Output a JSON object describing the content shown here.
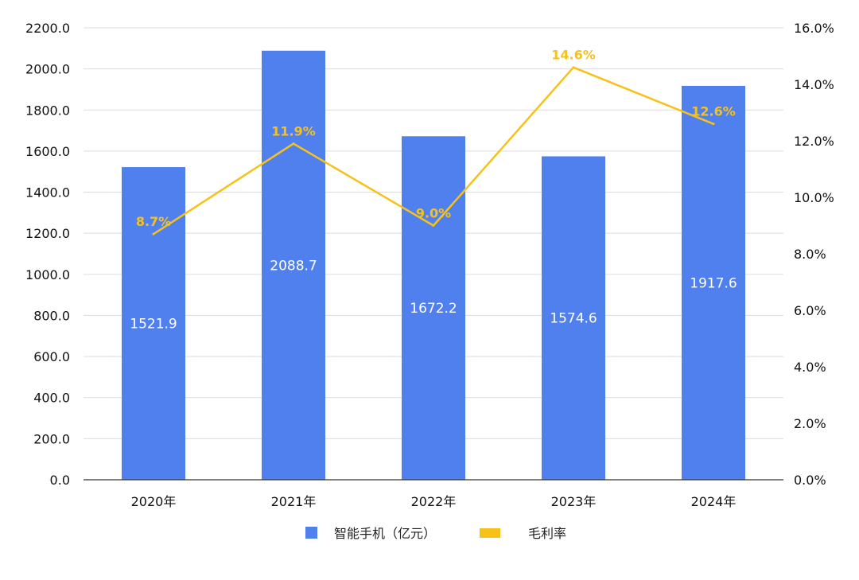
{
  "colors": {
    "bar": "#5080EE",
    "line": "#F6C21A",
    "grid": "#DDDDDD",
    "axis": "#333333"
  },
  "chart_data": {
    "type": "bar",
    "categories": [
      "2020年",
      "2021年",
      "2022年",
      "2023年",
      "2024年"
    ],
    "series": [
      {
        "name": "智能手机（亿元）",
        "type": "bar",
        "axis": "left",
        "values": [
          1521.9,
          2088.7,
          1672.2,
          1574.6,
          1917.6
        ],
        "labels": [
          "1521.9",
          "2088.7",
          "1672.2",
          "1574.6",
          "1917.6"
        ]
      },
      {
        "name": "毛利率",
        "type": "line",
        "axis": "right",
        "values": [
          8.7,
          11.9,
          9.0,
          14.6,
          12.6
        ],
        "labels": [
          "8.7%",
          "11.9%",
          "9.0%",
          "14.6%",
          "12.6%"
        ]
      }
    ],
    "left_axis": {
      "ylim": [
        0,
        2200
      ],
      "ticks": [
        "0.0",
        "200.0",
        "400.0",
        "600.0",
        "800.0",
        "1000.0",
        "1200.0",
        "1400.0",
        "1600.0",
        "1800.0",
        "2000.0",
        "2200.0"
      ]
    },
    "right_axis": {
      "ylim": [
        0,
        16
      ],
      "ticks": [
        "0.0%",
        "2.0%",
        "4.0%",
        "6.0%",
        "8.0%",
        "10.0%",
        "12.0%",
        "14.0%",
        "16.0%"
      ]
    },
    "grid": true,
    "legend_position": "bottom"
  }
}
